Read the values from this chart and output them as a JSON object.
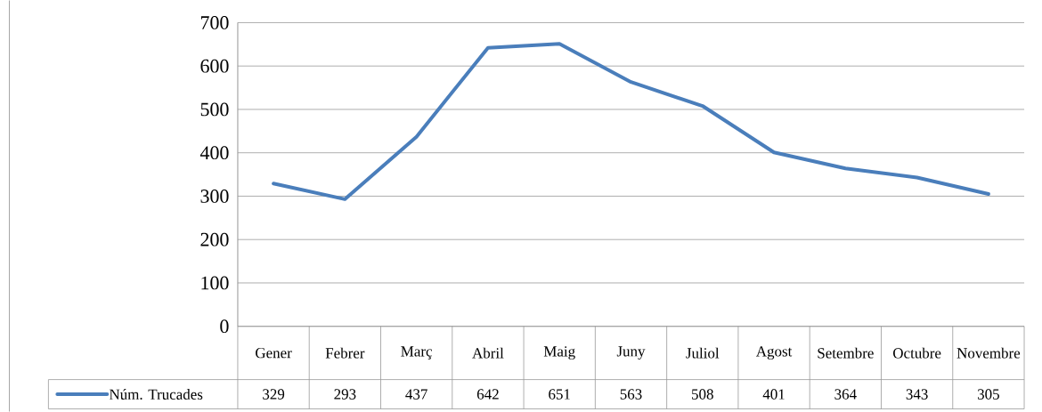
{
  "chart_data": {
    "type": "line",
    "categories": [
      "Gener",
      "Febrer",
      "Març",
      "Abril",
      "Maig",
      "Juny",
      "Juliol",
      "Agost",
      "Setembre",
      "Octubre",
      "Novembre"
    ],
    "series": [
      {
        "name": "Núm. Trucades",
        "color": "#4a7ebb",
        "values": [
          329,
          293,
          437,
          642,
          651,
          563,
          508,
          401,
          364,
          343,
          305
        ]
      }
    ],
    "ylim": [
      0,
      700
    ],
    "yticks": [
      0,
      100,
      200,
      300,
      400,
      500,
      600,
      700
    ],
    "grid": "y",
    "legend": "bottom left",
    "data_labels": true,
    "marker": "none",
    "line_style": "solid"
  }
}
